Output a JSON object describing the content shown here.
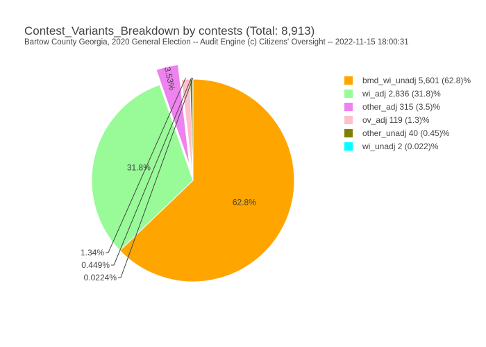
{
  "chart_data": {
    "type": "pie",
    "title": "Contest_Variants_Breakdown by contests (Total: 8,913)",
    "subtitle": "Bartow County Georgia, 2020 General Election -- Audit Engine (c) Citizens' Oversight -- 2022-11-15 18:00:31",
    "slices": [
      {
        "label": "bmd_wi_unadj",
        "value": 5601,
        "legend": "bmd_wi_unadj 5,601 (62.8)%",
        "pct_label": "62.8%",
        "color": "#ffa500",
        "pulled": false
      },
      {
        "label": "wi_adj",
        "value": 2836,
        "legend": "wi_adj 2,836 (31.8)%",
        "pct_label": "31.8%",
        "color": "#98fb98",
        "pulled": false
      },
      {
        "label": "other_adj",
        "value": 315,
        "legend": "other_adj 315 (3.5)%",
        "pct_label": "3.53%",
        "color": "#ee82ee",
        "pulled": true
      },
      {
        "label": "ov_adj",
        "value": 119,
        "legend": "ov_adj 119 (1.3)%",
        "pct_label": "1.34%",
        "color": "#ffc0cb",
        "pulled": false
      },
      {
        "label": "other_unadj",
        "value": 40,
        "legend": "other_unadj 40 (0.45)%",
        "pct_label": "0.449%",
        "color": "#808000",
        "pulled": false
      },
      {
        "label": "wi_unadj",
        "value": 2,
        "legend": "wi_unadj 2 (0.022)%",
        "pct_label": "0.0224%",
        "color": "#00ffff",
        "pulled": false
      }
    ],
    "direction": "clockwise",
    "start_angle": "12 o'clock",
    "legend_position": "right"
  }
}
